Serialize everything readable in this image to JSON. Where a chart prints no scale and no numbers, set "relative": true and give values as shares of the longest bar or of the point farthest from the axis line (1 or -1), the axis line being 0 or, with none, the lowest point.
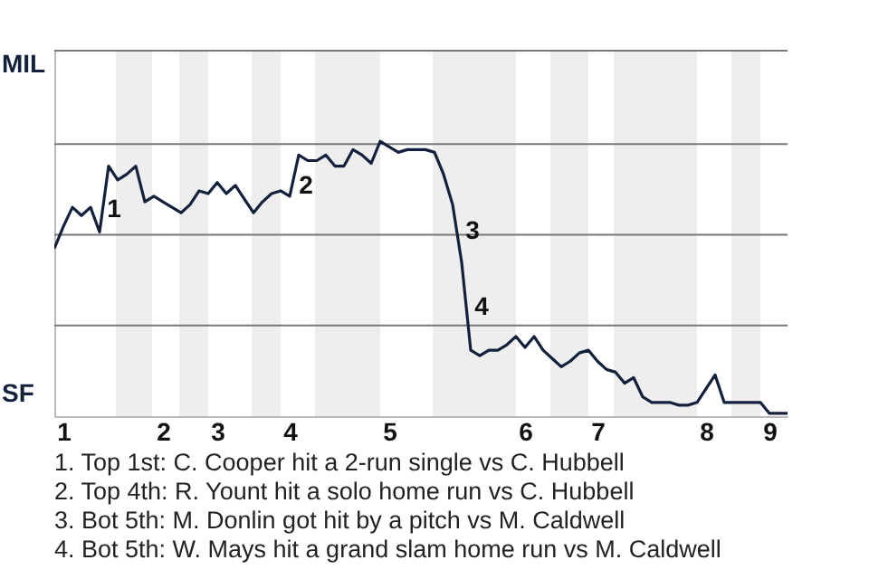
{
  "chart_data": {
    "type": "line",
    "relative": true,
    "categories": [
      null,
      "1",
      null,
      null,
      null,
      null,
      null,
      null,
      null,
      null,
      null,
      null,
      "2",
      null,
      null,
      null,
      null,
      null,
      "3",
      null,
      null,
      null,
      null,
      null,
      null,
      null,
      "4",
      null,
      null,
      null,
      null,
      null,
      null,
      null,
      null,
      null,
      null,
      "5",
      null,
      null,
      null,
      null,
      null,
      null,
      null,
      null,
      null,
      null,
      null,
      null,
      null,
      null,
      "6",
      null,
      null,
      null,
      null,
      null,
      null,
      null,
      "7",
      null,
      null,
      null,
      null,
      null,
      null,
      null,
      null,
      null,
      null,
      null,
      "8",
      null,
      null,
      null,
      null,
      null,
      null,
      "9",
      null,
      null
    ],
    "series": [
      {
        "color": "#14213d",
        "values": [
          0.61,
          0.69,
          0.76,
          0.73,
          0.76,
          0.67,
          0.91,
          0.86,
          0.88,
          0.91,
          0.78,
          0.8,
          0.78,
          0.76,
          0.74,
          0.77,
          0.82,
          0.81,
          0.85,
          0.81,
          0.84,
          0.79,
          0.74,
          0.78,
          0.81,
          0.82,
          0.8,
          0.95,
          0.93,
          0.93,
          0.95,
          0.91,
          0.91,
          0.97,
          0.95,
          0.92,
          1,
          0.98,
          0.96,
          0.97,
          0.97,
          0.97,
          0.96,
          0.88,
          0.77,
          0.56,
          0.24,
          0.22,
          0.24,
          0.24,
          0.26,
          0.29,
          0.25,
          0.29,
          0.24,
          0.21,
          0.18,
          0.2,
          0.23,
          0.24,
          0.2,
          0.17,
          0.16,
          0.12,
          0.14,
          0.07,
          0.05,
          0.05,
          0.05,
          0.04,
          0.04,
          0.05,
          0.1,
          0.15,
          0.05,
          0.05,
          0.05,
          0.05,
          0.05,
          0.01,
          0.01,
          0.01
        ]
      }
    ],
    "ref_lines": [
      {
        "axis": "y",
        "value": 0.33,
        "color": "#777777"
      },
      {
        "axis": "y",
        "value": 0.66,
        "color": "#777777"
      },
      {
        "axis": "y",
        "value": 0.99,
        "color": "#777777"
      },
      {
        "axis": "y",
        "value": 1.33,
        "color": "#777777"
      }
    ],
    "annotations": [
      "MIL",
      "SF",
      "1",
      "2",
      "3",
      "4",
      "1. Top 1st: C. Cooper hit a 2-run single vs C. Hubbell",
      "2. Top 4th: R. Yount hit a solo home run vs C. Hubbell",
      "3. Bot 5th: M. Donlin got hit by a pitch vs M. Caldwell",
      "4. Bot 5th: W. Mays hit a grand slam home run vs M. Caldwell"
    ]
  }
}
